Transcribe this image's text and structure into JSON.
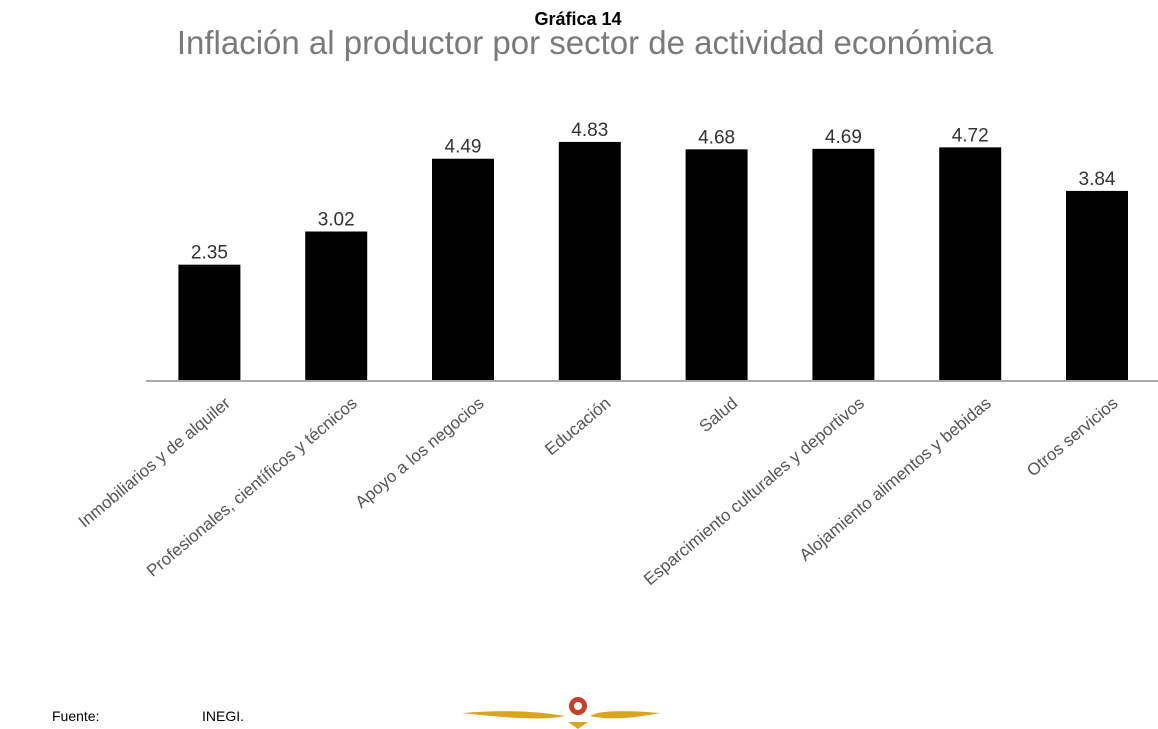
{
  "chart_data": {
    "type": "bar",
    "chart_label": "Gráfica 14",
    "title": "Inflación al productor por sector de actividad económica",
    "categories": [
      "Inmobiliarios y de alquiler",
      "Profesionales, científicos y técnicos",
      "Apoyo a los negocios",
      "Educación",
      "Salud",
      "Esparcimiento culturales y deportivos",
      "Alojamiento alimentos y bebidas",
      "Otros servicios"
    ],
    "values": [
      2.35,
      3.02,
      4.49,
      4.83,
      4.68,
      4.69,
      4.72,
      3.84
    ],
    "color": "#000000",
    "ylim": [
      0,
      5
    ],
    "source_label": "Fuente:",
    "source": "INEGI."
  }
}
